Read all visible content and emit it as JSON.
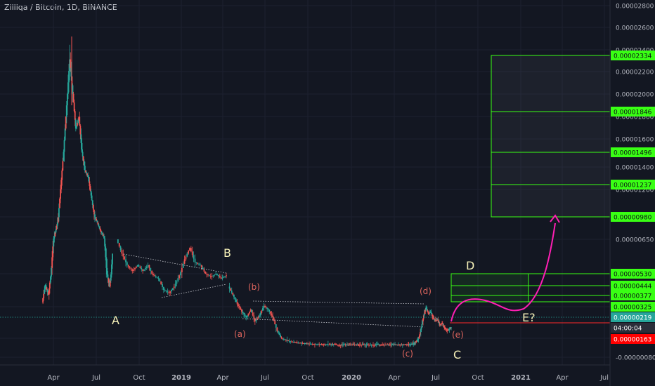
{
  "header": {
    "title": "Zilliqa / Bitcoin, 1D, BINANCE"
  },
  "colors": {
    "background": "#131722",
    "grid": "#1f2330",
    "axis_text": "#b2b5be",
    "candle_up": "#26a69a",
    "candle_down": "#ef5350",
    "wave_label_main": "#f5f0b8",
    "wave_label_sub": "#e0665e",
    "target_box": "#39ff14",
    "projection": "#ff1fb4",
    "price_line": "#26a69a",
    "support_line": "#ff2a2a"
  },
  "chart_data": {
    "type": "candlestick",
    "x_ticks": [
      "Apr",
      "Jul",
      "Oct",
      "2019",
      "Apr",
      "Jul",
      "Oct",
      "2020",
      "Apr",
      "Jul",
      "Oct",
      "2021",
      "Apr",
      "Jul"
    ],
    "y_ticks": [
      "0.00002800",
      "0.00002600",
      "0.00002400",
      "0.00002200",
      "0.00002000",
      "0.00001800",
      "0.00001600",
      "0.00001400",
      "0.00001200",
      "0.00000980",
      "0.00000650",
      "0.00000530",
      "0.00000325",
      "0.00000163",
      "-0.00000080"
    ],
    "price_markers": [
      {
        "label": "0.00002334",
        "style": "green"
      },
      {
        "label": "0.00001846",
        "style": "green"
      },
      {
        "label": "0.00001496",
        "style": "green"
      },
      {
        "label": "0.00001237",
        "style": "green"
      },
      {
        "label": "0.00000980",
        "style": "green"
      },
      {
        "label": "0.00000530",
        "style": "green"
      },
      {
        "label": "0.00000444",
        "style": "green"
      },
      {
        "label": "0.00000377",
        "style": "green"
      },
      {
        "label": "0.00000325",
        "style": "green"
      },
      {
        "label": "0.00000219",
        "style": "teal"
      },
      {
        "label": "04:00:04",
        "style": "dark"
      },
      {
        "label": "0.00000163",
        "style": "red"
      }
    ],
    "wave_labels": {
      "A": "A",
      "B": "B",
      "C": "C",
      "D": "D",
      "E": "E?",
      "a": "(a)",
      "b": "(b)",
      "c": "(c)",
      "d": "(d)",
      "e": "(e)"
    },
    "price_path": [
      [
        3.5e-06,
        4.6e-06,
        4e-06,
        5.5e-06,
        7e-06,
        9e-06,
        1.2e-05,
        1.5e-05,
        1.9e-05,
        2.3e-05,
        2e-05,
        1.7e-05,
        1.8e-05,
        1.5e-05,
        1.35e-05,
        1.3e-05,
        1.15e-05,
        1e-05,
        9e-06,
        7.8e-06,
        7e-06,
        5.5e-06,
        4.5e-06,
        6e-06
      ],
      [
        6.5e-06,
        6e-06,
        5.6e-06,
        5.4e-06,
        5.6e-06,
        5.4e-06,
        5.6e-06,
        5.2e-06,
        5e-06,
        4.3e-06,
        4.1e-06,
        4.5e-06,
        5.2e-06,
        5.8e-06,
        6.2e-06,
        5.7e-06,
        5.6e-06,
        5.3e-06,
        5.1e-06,
        5.3e-06,
        5e-06,
        5.2e-06
      ],
      [
        4.5e-06,
        4e-06,
        3.4e-06,
        3e-06,
        2.7e-06,
        3.1e-06,
        2.5e-06,
        2.8e-06,
        3.3e-06,
        3.1e-06,
        2.7e-06,
        2e-06,
        1.6e-06,
        1.4e-06,
        1.2e-06,
        1.1e-06,
        1.05e-06,
        1e-06,
        9.5e-07,
        9e-07,
        8.5e-07,
        9e-07,
        8.5e-07,
        8e-07
      ],
      [
        8.5e-07,
        9e-07,
        8e-07,
        7.5e-07,
        8.5e-07,
        8e-07,
        7.8e-07,
        8.2e-07,
        8e-07,
        7.8e-07,
        8.5e-07,
        8e-07,
        7.8e-07,
        8e-07,
        8.5e-07,
        8e-07,
        7.8e-07,
        8.2e-07,
        8e-07,
        8.5e-07,
        7.8e-07,
        8e-07,
        8.5e-07,
        8e-07
      ],
      [
        8.2e-07,
        8e-07,
        9e-07,
        1e-06,
        1.3e-06,
        1.7e-06,
        2.2e-06,
        2.8e-06,
        3.2e-06,
        2.9e-06,
        3e-06,
        2.7e-06,
        2.5e-06,
        2.6e-06,
        2.3e-06,
        2.4e-06,
        2.2e-06,
        2e-06,
        2.1e-06,
        2.19e-06
      ]
    ]
  }
}
